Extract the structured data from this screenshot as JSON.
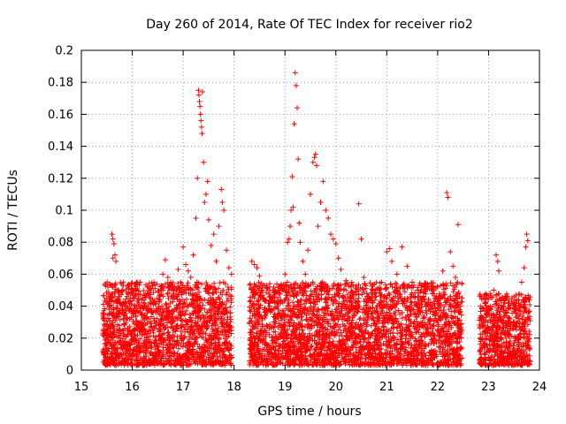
{
  "chart_data": {
    "type": "scatter",
    "title": "Day 260 of 2014, Rate Of TEC Index for receiver rio2",
    "xlabel": "GPS time / hours",
    "ylabel": "ROTI / TECUs",
    "xlim": [
      15,
      24
    ],
    "ylim": [
      0,
      0.2
    ],
    "xticks": [
      "15",
      "16",
      "17",
      "18",
      "19",
      "20",
      "21",
      "22",
      "23",
      "24"
    ],
    "yticks": [
      "0",
      "0.02",
      "0.04",
      "0.06",
      "0.08",
      "0.1",
      "0.12",
      "0.14",
      "0.16",
      "0.18",
      "0.2"
    ],
    "grid": true,
    "marker": "+",
    "colors": {
      "points": "#ff0000",
      "grid": "#a0a0a0",
      "frame": "#000000"
    },
    "series": [
      {
        "name": "ROTI",
        "points": [
          [
            15.42,
            0.022
          ],
          [
            15.45,
            0.031
          ],
          [
            15.48,
            0.015
          ],
          [
            15.5,
            0.045
          ],
          [
            15.52,
            0.052
          ],
          [
            15.55,
            0.038
          ],
          [
            15.58,
            0.028
          ],
          [
            15.6,
            0.085
          ],
          [
            15.62,
            0.082
          ],
          [
            15.64,
            0.079
          ],
          [
            15.66,
            0.072
          ],
          [
            15.68,
            0.068
          ],
          [
            15.62,
            0.07
          ],
          [
            15.7,
            0.042
          ],
          [
            15.75,
            0.035
          ],
          [
            15.8,
            0.05
          ],
          [
            15.85,
            0.026
          ],
          [
            15.9,
            0.048
          ],
          [
            15.95,
            0.032
          ],
          [
            16.0,
            0.05
          ],
          [
            16.05,
            0.04
          ],
          [
            16.1,
            0.055
          ],
          [
            16.15,
            0.03
          ],
          [
            16.2,
            0.045
          ],
          [
            16.3,
            0.037
          ],
          [
            16.4,
            0.044
          ],
          [
            16.5,
            0.049
          ],
          [
            16.6,
            0.06
          ],
          [
            16.65,
            0.069
          ],
          [
            16.7,
            0.058
          ],
          [
            16.8,
            0.052
          ],
          [
            16.9,
            0.063
          ],
          [
            16.95,
            0.055
          ],
          [
            17.0,
            0.077
          ],
          [
            17.05,
            0.066
          ],
          [
            17.1,
            0.062
          ],
          [
            17.15,
            0.058
          ],
          [
            17.2,
            0.072
          ],
          [
            17.25,
            0.095
          ],
          [
            17.28,
            0.12
          ],
          [
            17.3,
            0.175
          ],
          [
            17.31,
            0.172
          ],
          [
            17.32,
            0.168
          ],
          [
            17.33,
            0.165
          ],
          [
            17.34,
            0.16
          ],
          [
            17.35,
            0.156
          ],
          [
            17.36,
            0.152
          ],
          [
            17.37,
            0.148
          ],
          [
            17.38,
            0.174
          ],
          [
            17.4,
            0.13
          ],
          [
            17.42,
            0.105
          ],
          [
            17.45,
            0.11
          ],
          [
            17.48,
            0.118
          ],
          [
            17.5,
            0.094
          ],
          [
            17.55,
            0.078
          ],
          [
            17.6,
            0.085
          ],
          [
            17.65,
            0.068
          ],
          [
            17.7,
            0.09
          ],
          [
            17.75,
            0.113
          ],
          [
            17.77,
            0.105
          ],
          [
            17.8,
            0.1
          ],
          [
            17.85,
            0.075
          ],
          [
            17.9,
            0.064
          ],
          [
            17.95,
            0.06
          ],
          [
            18.35,
            0.068
          ],
          [
            18.4,
            0.066
          ],
          [
            18.45,
            0.064
          ],
          [
            18.5,
            0.059
          ],
          [
            18.55,
            0.05
          ],
          [
            18.6,
            0.043
          ],
          [
            18.7,
            0.04
          ],
          [
            18.8,
            0.047
          ],
          [
            18.9,
            0.05
          ],
          [
            19.0,
            0.06
          ],
          [
            19.05,
            0.08
          ],
          [
            19.08,
            0.082
          ],
          [
            19.1,
            0.09
          ],
          [
            19.12,
            0.1
          ],
          [
            19.14,
            0.121
          ],
          [
            19.16,
            0.102
          ],
          [
            19.18,
            0.154
          ],
          [
            19.2,
            0.186
          ],
          [
            19.22,
            0.178
          ],
          [
            19.24,
            0.164
          ],
          [
            19.26,
            0.132
          ],
          [
            19.28,
            0.092
          ],
          [
            19.3,
            0.08
          ],
          [
            19.35,
            0.068
          ],
          [
            19.4,
            0.06
          ],
          [
            19.45,
            0.075
          ],
          [
            19.5,
            0.11
          ],
          [
            19.55,
            0.13
          ],
          [
            19.58,
            0.133
          ],
          [
            19.6,
            0.135
          ],
          [
            19.62,
            0.128
          ],
          [
            19.65,
            0.09
          ],
          [
            19.7,
            0.105
          ],
          [
            19.75,
            0.118
          ],
          [
            19.8,
            0.1
          ],
          [
            19.85,
            0.095
          ],
          [
            19.9,
            0.085
          ],
          [
            19.95,
            0.082
          ],
          [
            20.0,
            0.079
          ],
          [
            20.05,
            0.07
          ],
          [
            20.1,
            0.063
          ],
          [
            20.2,
            0.056
          ],
          [
            20.3,
            0.052
          ],
          [
            20.45,
            0.104
          ],
          [
            20.5,
            0.082
          ],
          [
            20.55,
            0.058
          ],
          [
            20.7,
            0.045
          ],
          [
            20.9,
            0.055
          ],
          [
            21.0,
            0.074
          ],
          [
            21.05,
            0.076
          ],
          [
            21.1,
            0.068
          ],
          [
            21.2,
            0.06
          ],
          [
            21.3,
            0.077
          ],
          [
            21.4,
            0.065
          ],
          [
            21.5,
            0.055
          ],
          [
            21.6,
            0.05
          ],
          [
            21.7,
            0.045
          ],
          [
            21.8,
            0.052
          ],
          [
            21.9,
            0.048
          ],
          [
            22.0,
            0.045
          ],
          [
            22.1,
            0.062
          ],
          [
            22.18,
            0.111
          ],
          [
            22.2,
            0.108
          ],
          [
            22.25,
            0.074
          ],
          [
            22.3,
            0.065
          ],
          [
            22.35,
            0.058
          ],
          [
            22.4,
            0.091
          ],
          [
            22.45,
            0.04
          ],
          [
            22.85,
            0.034
          ],
          [
            22.9,
            0.028
          ],
          [
            22.95,
            0.031
          ],
          [
            23.0,
            0.026
          ],
          [
            23.05,
            0.038
          ],
          [
            23.1,
            0.05
          ],
          [
            23.15,
            0.072
          ],
          [
            23.18,
            0.068
          ],
          [
            23.2,
            0.062
          ],
          [
            23.25,
            0.045
          ],
          [
            23.3,
            0.036
          ],
          [
            23.4,
            0.042
          ],
          [
            23.5,
            0.046
          ],
          [
            23.6,
            0.04
          ],
          [
            23.65,
            0.055
          ],
          [
            23.7,
            0.064
          ],
          [
            23.73,
            0.077
          ],
          [
            23.75,
            0.085
          ],
          [
            23.77,
            0.081
          ],
          [
            23.8,
            0.044
          ]
        ],
        "dense_segments": [
          {
            "x_range": [
              15.42,
              17.95
            ],
            "y_range": [
              0.003,
              0.055
            ]
          },
          {
            "x_range": [
              18.3,
              22.48
            ],
            "y_range": [
              0.003,
              0.055
            ]
          },
          {
            "x_range": [
              22.82,
              23.82
            ],
            "y_range": [
              0.003,
              0.048
            ]
          }
        ]
      }
    ]
  }
}
